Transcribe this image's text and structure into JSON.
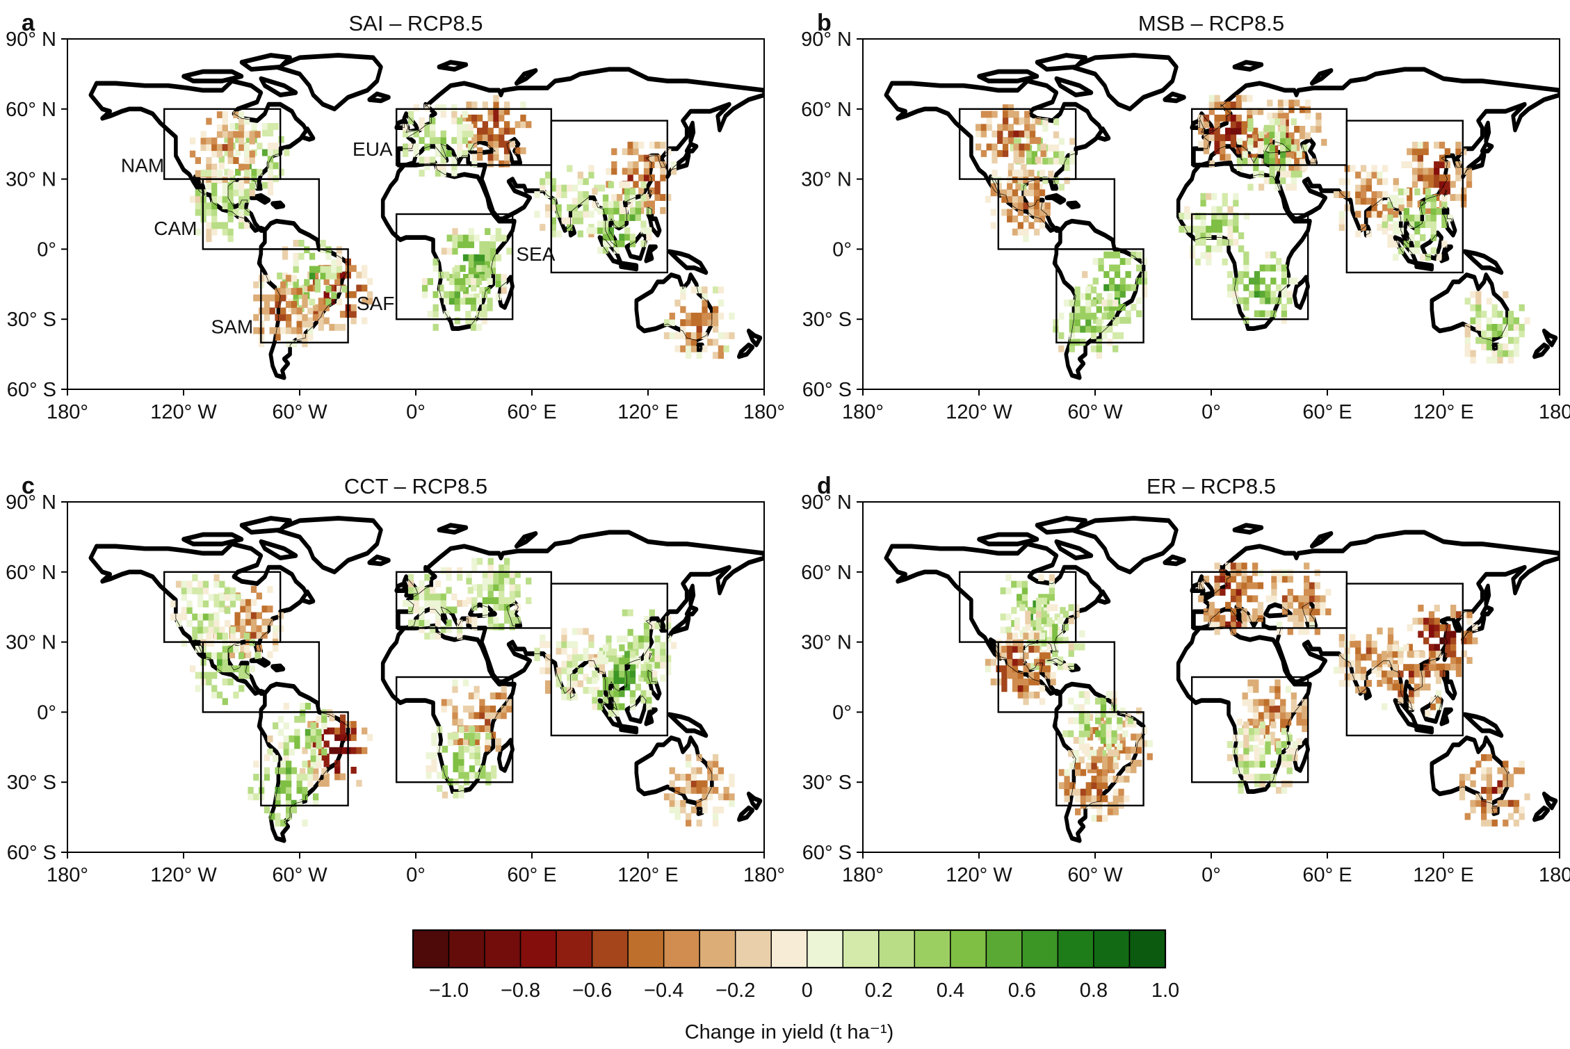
{
  "panels": [
    {
      "letter": "a",
      "title": "SAI – RCP8.5",
      "region_labels": [
        {
          "text": "NAM",
          "lon": -130,
          "lat": 33
        },
        {
          "text": "CAM",
          "lon": -113,
          "lat": 6
        },
        {
          "text": "SAM",
          "lon": -84,
          "lat": -36
        },
        {
          "text": "EUA",
          "lon": -12,
          "lat": 40
        },
        {
          "text": "SEA",
          "lon": 72,
          "lat": -5
        },
        {
          "text": "SAF",
          "lon": -11,
          "lat": -26
        }
      ],
      "hotspots": [
        {
          "lon": 40,
          "lat": 52,
          "v": -0.6
        },
        {
          "lon": 10,
          "lat": 48,
          "v": 0.4
        },
        {
          "lon": -85,
          "lat": 40,
          "v": 0.5
        },
        {
          "lon": -100,
          "lat": 45,
          "v": -0.3
        },
        {
          "lon": -42,
          "lat": -18,
          "v": -0.8
        },
        {
          "lon": -55,
          "lat": -10,
          "v": 0.6
        },
        {
          "lon": 30,
          "lat": -5,
          "v": 0.7
        },
        {
          "lon": 78,
          "lat": 22,
          "v": 0.3
        },
        {
          "lon": 115,
          "lat": 32,
          "v": -0.5
        },
        {
          "lon": 105,
          "lat": 15,
          "v": 0.6
        },
        {
          "lon": 20,
          "lat": -18,
          "v": 0.5
        },
        {
          "lon": -70,
          "lat": -25,
          "v": -0.4
        },
        {
          "lon": 145,
          "lat": -30,
          "v": -0.3
        },
        {
          "lon": -100,
          "lat": 20,
          "v": 0.4
        }
      ]
    },
    {
      "letter": "b",
      "title": "MSB – RCP8.5",
      "region_labels": [],
      "hotspots": [
        {
          "lon": 10,
          "lat": 52,
          "v": -0.8
        },
        {
          "lon": 40,
          "lat": 50,
          "v": -0.5
        },
        {
          "lon": -90,
          "lat": 42,
          "v": 0.3
        },
        {
          "lon": -105,
          "lat": 48,
          "v": -0.5
        },
        {
          "lon": -50,
          "lat": -15,
          "v": 0.7
        },
        {
          "lon": 25,
          "lat": -15,
          "v": 0.6
        },
        {
          "lon": 80,
          "lat": 22,
          "v": -0.3
        },
        {
          "lon": 115,
          "lat": 32,
          "v": -0.6
        },
        {
          "lon": 105,
          "lat": 12,
          "v": 0.5
        },
        {
          "lon": 30,
          "lat": 42,
          "v": 0.5
        },
        {
          "lon": 145,
          "lat": -32,
          "v": 0.4
        },
        {
          "lon": -100,
          "lat": 20,
          "v": -0.4
        },
        {
          "lon": -65,
          "lat": -30,
          "v": 0.5
        },
        {
          "lon": 0,
          "lat": 10,
          "v": 0.4
        }
      ]
    },
    {
      "letter": "c",
      "title": "CCT – RCP8.5",
      "region_labels": [],
      "hotspots": [
        {
          "lon": 40,
          "lat": 52,
          "v": 0.4
        },
        {
          "lon": 10,
          "lat": 48,
          "v": 0.3
        },
        {
          "lon": -88,
          "lat": 40,
          "v": -0.4
        },
        {
          "lon": -110,
          "lat": 45,
          "v": 0.3
        },
        {
          "lon": -42,
          "lat": -15,
          "v": -0.9
        },
        {
          "lon": -60,
          "lat": -10,
          "v": 0.5
        },
        {
          "lon": 30,
          "lat": 0,
          "v": -0.4
        },
        {
          "lon": 78,
          "lat": 22,
          "v": 0.2
        },
        {
          "lon": 115,
          "lat": 30,
          "v": 0.4
        },
        {
          "lon": 105,
          "lat": 15,
          "v": 0.7
        },
        {
          "lon": 22,
          "lat": -20,
          "v": 0.5
        },
        {
          "lon": -70,
          "lat": -32,
          "v": 0.6
        },
        {
          "lon": 145,
          "lat": -32,
          "v": -0.3
        },
        {
          "lon": -100,
          "lat": 20,
          "v": 0.5
        }
      ]
    },
    {
      "letter": "d",
      "title": "ER – RCP8.5",
      "region_labels": [],
      "hotspots": [
        {
          "lon": 10,
          "lat": 50,
          "v": -0.7
        },
        {
          "lon": 45,
          "lat": 50,
          "v": -0.4
        },
        {
          "lon": -95,
          "lat": 45,
          "v": 0.6
        },
        {
          "lon": -85,
          "lat": 35,
          "v": 0.3
        },
        {
          "lon": -50,
          "lat": -12,
          "v": -0.4
        },
        {
          "lon": -60,
          "lat": -5,
          "v": 0.4
        },
        {
          "lon": 30,
          "lat": 0,
          "v": -0.3
        },
        {
          "lon": 80,
          "lat": 25,
          "v": -0.3
        },
        {
          "lon": 118,
          "lat": 32,
          "v": -0.8
        },
        {
          "lon": 102,
          "lat": 15,
          "v": -0.5
        },
        {
          "lon": 25,
          "lat": -18,
          "v": 0.3
        },
        {
          "lon": -62,
          "lat": -30,
          "v": -0.4
        },
        {
          "lon": 145,
          "lat": -32,
          "v": -0.5
        },
        {
          "lon": -100,
          "lat": 20,
          "v": -0.6
        }
      ]
    }
  ],
  "lat_ticks": [
    "90° N",
    "60° N",
    "30° N",
    "0°",
    "30° S",
    "60° S"
  ],
  "lon_ticks": [
    "180°",
    "120° W",
    "60° W",
    "0°",
    "60° E",
    "120° E",
    "180°"
  ],
  "regions": [
    {
      "name": "NAM",
      "lon": [
        -130,
        -70
      ],
      "lat": [
        30,
        60
      ]
    },
    {
      "name": "CAM",
      "lon": [
        -110,
        -50
      ],
      "lat": [
        0,
        30
      ]
    },
    {
      "name": "SAM",
      "lon": [
        -80,
        -35
      ],
      "lat": [
        -40,
        0
      ]
    },
    {
      "name": "EUA",
      "lon": [
        -10,
        70
      ],
      "lat": [
        36,
        60
      ]
    },
    {
      "name": "SEA",
      "lon": [
        70,
        130
      ],
      "lat": [
        -10,
        55
      ]
    },
    {
      "name": "SAF",
      "lon": [
        -10,
        50
      ],
      "lat": [
        -30,
        15
      ]
    }
  ],
  "colorbar": {
    "label": "Change in yield (t ha⁻¹)",
    "tick_labels": [
      "−1.0",
      "−0.8",
      "−0.6",
      "−0.4",
      "−0.2",
      "0",
      "0.2",
      "0.4",
      "0.6",
      "0.8",
      "1.0"
    ],
    "colors": [
      "#4d0a08",
      "#640c0a",
      "#730d0b",
      "#840e0b",
      "#8f1e10",
      "#a4451c",
      "#bf6f2c",
      "#d08d4f",
      "#dcad77",
      "#ead0aa",
      "#f7ecd6",
      "#ecf5d6",
      "#d4eaaa",
      "#b8dd86",
      "#9ccf62",
      "#7fbf44",
      "#5aa934",
      "#3b9626",
      "#1e7d19",
      "#126b14",
      "#0b5a0f"
    ]
  }
}
